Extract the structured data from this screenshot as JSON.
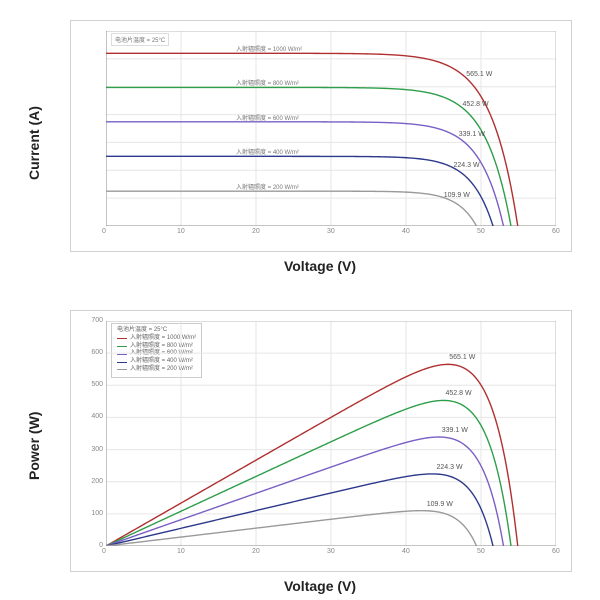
{
  "global": {
    "temperature_note": "电池片温度 = 25°C",
    "irradiance_items": [
      {
        "label": "入射辐照度 = 1000 W/m²",
        "color": "#b03030"
      },
      {
        "label": "入射辐照度 = 800 W/m²",
        "color": "#2e9e4a"
      },
      {
        "label": "入射辐照度 = 600 W/m²",
        "color": "#7a5fc4"
      },
      {
        "label": "入射辐照度 = 400 W/m²",
        "color": "#2d3a8c"
      },
      {
        "label": "入射辐照度 = 200 W/m²",
        "color": "#9a9a9a"
      }
    ]
  },
  "iv_chart": {
    "type": "line",
    "ylabel": "Current (A)",
    "xlabel": "Voltage (V)",
    "xlim": [
      0,
      60
    ],
    "ylim": [
      0,
      14
    ],
    "xtick_step": 10,
    "background_color": "#ffffff",
    "grid_color": "#e6e6e6",
    "line_width": 1.4,
    "curves": [
      {
        "color": "#b03030",
        "label": "565.1 W",
        "isc": 12.4,
        "voc": 54.9,
        "vmp": 45.5
      },
      {
        "color": "#2e9e4a",
        "label": "452.8 W",
        "isc": 9.95,
        "voc": 54.0,
        "vmp": 45.0
      },
      {
        "color": "#7a5fc4",
        "label": "339.1 W",
        "isc": 7.48,
        "voc": 53.0,
        "vmp": 44.5
      },
      {
        "color": "#2d3a8c",
        "label": "224.3 W",
        "isc": 5.0,
        "voc": 51.6,
        "vmp": 43.8
      },
      {
        "color": "#9a9a9a",
        "label": "109.9 W",
        "isc": 2.5,
        "voc": 49.4,
        "vmp": 42.5
      }
    ]
  },
  "pv_chart": {
    "type": "line",
    "ylabel": "Power (W)",
    "xlabel": "Voltage (V)",
    "xlim": [
      0,
      60
    ],
    "ylim": [
      0,
      700
    ],
    "ytick_step": 100,
    "xtick_step": 10,
    "background_color": "#ffffff",
    "grid_color": "#e6e6e6",
    "line_width": 1.4,
    "curves": [
      {
        "color": "#b03030",
        "label": "565.1 W",
        "isc": 12.4,
        "voc": 54.9,
        "vmp": 45.5,
        "pmax": 565.1
      },
      {
        "color": "#2e9e4a",
        "label": "452.8 W",
        "isc": 9.95,
        "voc": 54.0,
        "vmp": 45.0,
        "pmax": 452.8
      },
      {
        "color": "#7a5fc4",
        "label": "339.1 W",
        "isc": 7.48,
        "voc": 53.0,
        "vmp": 44.5,
        "pmax": 339.1
      },
      {
        "color": "#2d3a8c",
        "label": "224.3 W",
        "isc": 5.0,
        "voc": 51.6,
        "vmp": 43.8,
        "pmax": 224.3
      },
      {
        "color": "#9a9a9a",
        "label": "109.9 W",
        "isc": 2.5,
        "voc": 49.4,
        "vmp": 42.5,
        "pmax": 109.9
      }
    ]
  }
}
